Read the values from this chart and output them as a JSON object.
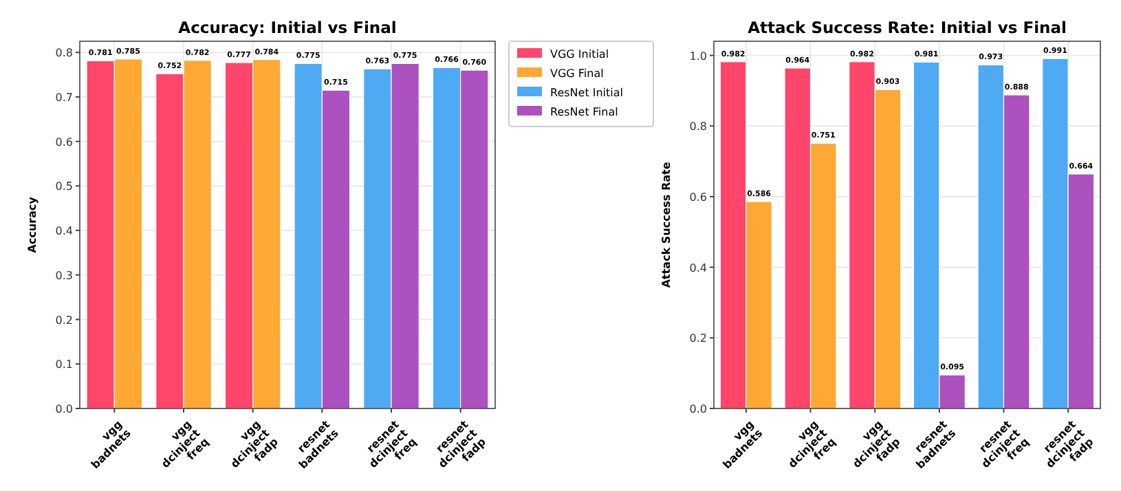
{
  "chart_data": [
    {
      "type": "bar",
      "title": "Accuracy: Initial vs Final",
      "ylabel": "Accuracy",
      "categories": [
        "vgg\nbadnets",
        "vgg\ndcinject\nfreq",
        "vgg\ndcinject\nfadp",
        "resnet\nbadnets",
        "resnet\ndcinject\nfreq",
        "resnet\ndcinject\nfadp"
      ],
      "series": [
        {
          "name": "VGG Initial",
          "color": "#ff4569",
          "values": [
            0.781,
            0.752,
            0.777,
            null,
            null,
            null
          ]
        },
        {
          "name": "VGG Final",
          "color": "#ffa833",
          "values": [
            0.785,
            0.782,
            0.784,
            null,
            null,
            null
          ]
        },
        {
          "name": "ResNet Initial",
          "color": "#4eaaf2",
          "values": [
            null,
            null,
            null,
            0.775,
            0.763,
            0.766
          ]
        },
        {
          "name": "ResNet Final",
          "color": "#ad50c0",
          "values": [
            null,
            null,
            null,
            0.715,
            0.775,
            0.76
          ],
          "value_labels": [
            null,
            null,
            null,
            "0.715",
            "0.775",
            "0.760"
          ]
        }
      ],
      "ylim": [
        0,
        0.825
      ],
      "yticks": [
        {
          "value": 0,
          "label": "0.0"
        },
        0.1,
        0.2,
        0.3,
        0.4,
        0.5,
        0.6,
        0.7,
        0.8
      ],
      "grid": true,
      "legend": "right",
      "data_labels": true
    },
    {
      "type": "bar",
      "title": "Attack Success Rate: Initial vs Final",
      "ylabel": "Attack Success Rate",
      "categories": [
        "vgg\nbadnets",
        "vgg\ndcinject\nfreq",
        "vgg\ndcinject\nfadp",
        "resnet\nbadnets",
        "resnet\ndcinject\nfreq",
        "resnet\ndcinject\nfadp"
      ],
      "series": [
        {
          "color": "#ff4569",
          "values": [
            0.982,
            0.964,
            0.982,
            null,
            null,
            null
          ]
        },
        {
          "color": "#ffa833",
          "values": [
            0.586,
            0.751,
            0.903,
            null,
            null,
            null
          ]
        },
        {
          "color": "#4eaaf2",
          "values": [
            null,
            null,
            null,
            0.981,
            0.973,
            0.991
          ]
        },
        {
          "color": "#ad50c0",
          "values": [
            null,
            null,
            null,
            0.095,
            0.888,
            0.664
          ]
        }
      ],
      "ylim": [
        0,
        1.04
      ],
      "yticks": [
        {
          "value": 0,
          "label": "0.0"
        },
        {
          "value": 0.2,
          "label": "0.2"
        },
        {
          "value": 0.4,
          "label": "0.4"
        },
        {
          "value": 0.6,
          "label": "0.6"
        },
        {
          "value": 0.8,
          "label": "0.8"
        },
        {
          "value": 1,
          "label": "1.0"
        }
      ],
      "grid": true,
      "data_labels": true
    }
  ]
}
